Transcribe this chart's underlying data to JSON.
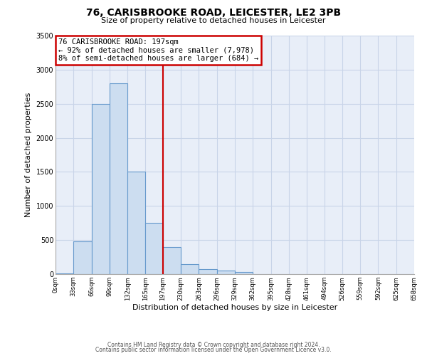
{
  "title": "76, CARISBROOKE ROAD, LEICESTER, LE2 3PB",
  "subtitle": "Size of property relative to detached houses in Leicester",
  "xlabel": "Distribution of detached houses by size in Leicester",
  "ylabel": "Number of detached properties",
  "bar_left_edges": [
    0,
    33,
    66,
    99,
    132,
    165,
    197,
    230,
    263,
    296,
    329,
    362,
    395,
    428,
    461,
    494,
    526,
    559,
    592,
    625
  ],
  "bar_widths": [
    33,
    33,
    33,
    33,
    33,
    32,
    33,
    33,
    33,
    33,
    33,
    33,
    33,
    33,
    33,
    32,
    33,
    33,
    33,
    33
  ],
  "bar_heights": [
    10,
    480,
    2500,
    2800,
    1500,
    750,
    400,
    150,
    75,
    50,
    30,
    0,
    0,
    0,
    0,
    0,
    0,
    0,
    0,
    0
  ],
  "bar_color": "#ccddf0",
  "bar_edge_color": "#6699cc",
  "marker_x": 197,
  "marker_color": "#cc0000",
  "annotation_text": "76 CARISBROOKE ROAD: 197sqm\n← 92% of detached houses are smaller (7,978)\n8% of semi-detached houses are larger (684) →",
  "annotation_box_edge_color": "#cc0000",
  "ylim": [
    0,
    3500
  ],
  "xlim": [
    0,
    658
  ],
  "xtick_positions": [
    0,
    33,
    66,
    99,
    132,
    165,
    197,
    230,
    263,
    296,
    329,
    362,
    395,
    428,
    461,
    494,
    526,
    559,
    592,
    625,
    658
  ],
  "xtick_labels": [
    "0sqm",
    "33sqm",
    "66sqm",
    "99sqm",
    "132sqm",
    "165sqm",
    "197sqm",
    "230sqm",
    "263sqm",
    "296sqm",
    "329sqm",
    "362sqm",
    "395sqm",
    "428sqm",
    "461sqm",
    "494sqm",
    "526sqm",
    "559sqm",
    "592sqm",
    "625sqm",
    "658sqm"
  ],
  "footer_line1": "Contains HM Land Registry data © Crown copyright and database right 2024.",
  "footer_line2": "Contains public sector information licensed under the Open Government Licence v3.0.",
  "background_color": "#ffffff",
  "plot_bg_color": "#e8eef8",
  "grid_color": "#c8d4e8"
}
